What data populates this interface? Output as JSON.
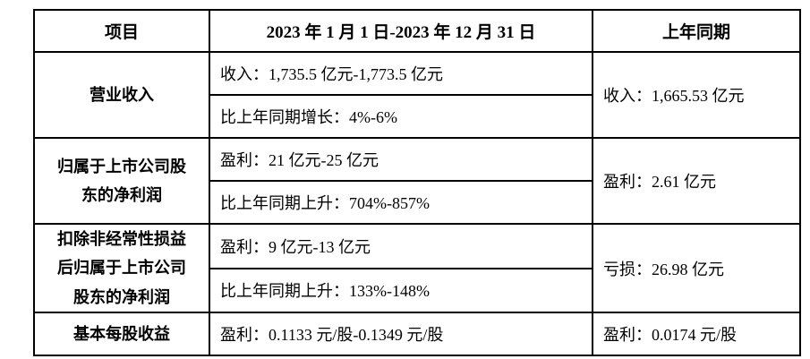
{
  "table": {
    "header": {
      "item": "项目",
      "period": "2023 年 1 月 1 日-2023 年 12 月 31 日",
      "prior": "上年同期"
    },
    "rows": [
      {
        "item_lines": [
          "营业收入"
        ],
        "lines": [
          "收入：1,735.5 亿元-1,773.5 亿元",
          "比上年同期增长：4%-6%"
        ],
        "prior": "收入：1,665.53 亿元"
      },
      {
        "item_lines": [
          "归属于上市公司股",
          "东的净利润"
        ],
        "lines": [
          "盈利：21 亿元-25 亿元",
          "比上年同期上升：704%-857%"
        ],
        "prior": "盈利：2.61 亿元"
      },
      {
        "item_lines": [
          "扣除非经常性损益",
          "后归属于上市公司",
          "股东的净利润"
        ],
        "lines": [
          "盈利：9 亿元-13 亿元",
          "比上年同期上升：133%-148%"
        ],
        "prior": "亏损：26.98 亿元"
      },
      {
        "item_lines": [
          "基本每股收益"
        ],
        "lines": [
          "盈利：0.1133 元/股-0.1349 元/股"
        ],
        "prior": "盈利：0.0174 元/股"
      }
    ]
  }
}
